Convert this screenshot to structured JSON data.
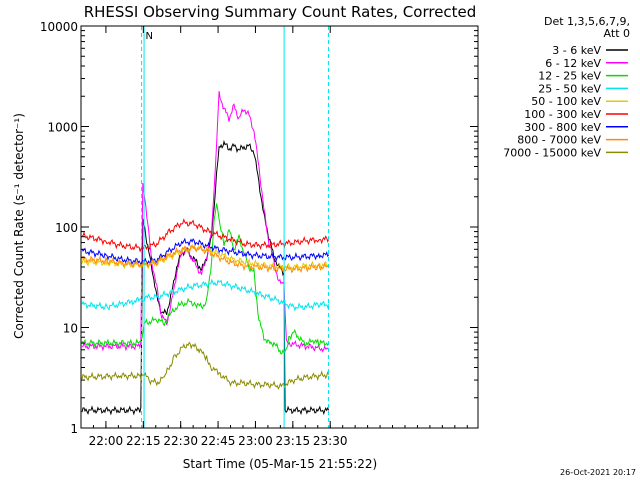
{
  "chart_data": {
    "type": "line",
    "title": "RHESSI Observing Summary Count Rates, Corrected",
    "xlabel": "Start Time (05-Mar-15 21:55:22)",
    "ylabel": "Corrected Count Rate (s⁻¹ detector⁻¹)",
    "yscale": "log",
    "ylim": [
      1,
      10000
    ],
    "xlim_min": [
      -5.4,
      153.9
    ],
    "x_ticks": [
      {
        "t": 4.6,
        "label": "22:00"
      },
      {
        "t": 19.6,
        "label": "22:15"
      },
      {
        "t": 34.6,
        "label": "22:30"
      },
      {
        "t": 49.6,
        "label": "22:45"
      },
      {
        "t": 64.6,
        "label": "23:00"
      },
      {
        "t": 79.6,
        "label": "23:15"
      },
      {
        "t": 94.6,
        "label": "23:30"
      }
    ],
    "y_ticks": [
      {
        "v": 1,
        "label": "1"
      },
      {
        "v": 10,
        "label": "10"
      },
      {
        "v": 100,
        "label": "100"
      },
      {
        "v": 1000,
        "label": "1000"
      },
      {
        "v": 10000,
        "label": "10000"
      }
    ],
    "legend_header": [
      "Det 1,3,5,6,7,9,",
      "Att 0"
    ],
    "legend_position": "right",
    "timestamp": "26-Oct-2021 20:17",
    "annotations": [
      {
        "text": "N",
        "t": 20.5,
        "y": 8500,
        "color": "#00e5ee"
      }
    ],
    "night_markers": [
      {
        "type": "dashed",
        "t": 18.9
      },
      {
        "type": "solid",
        "t": 19.9
      },
      {
        "type": "solid",
        "t": 76.1
      },
      {
        "type": "dashed",
        "t": 93.9
      }
    ],
    "night_bars": [
      {
        "t0": -5.4,
        "t1": 18.9,
        "y": 7000
      },
      {
        "t0": 76.1,
        "t1": 93.9,
        "y": 7000
      }
    ],
    "series": [
      {
        "name": "3 - 6 keV",
        "color": "#000000",
        "points": [
          [
            -5,
            1.5
          ],
          [
            18.6,
            1.5
          ],
          [
            19.4,
            120
          ],
          [
            21,
            70
          ],
          [
            23,
            40
          ],
          [
            25,
            20
          ],
          [
            27,
            14
          ],
          [
            29,
            14
          ],
          [
            31,
            22
          ],
          [
            33,
            40
          ],
          [
            35,
            55
          ],
          [
            37,
            60
          ],
          [
            39,
            50
          ],
          [
            41,
            45
          ],
          [
            43,
            37
          ],
          [
            45,
            50
          ],
          [
            47,
            80
          ],
          [
            48,
            150
          ],
          [
            49,
            350
          ],
          [
            50,
            620
          ],
          [
            52,
            680
          ],
          [
            54,
            600
          ],
          [
            56,
            640
          ],
          [
            58,
            590
          ],
          [
            60,
            620
          ],
          [
            62,
            640
          ],
          [
            64,
            560
          ],
          [
            66,
            280
          ],
          [
            68,
            130
          ],
          [
            70,
            80
          ],
          [
            72,
            50
          ],
          [
            74,
            40
          ],
          [
            76,
            35
          ],
          [
            76.5,
            1.5
          ],
          [
            94,
            1.5
          ]
        ]
      },
      {
        "name": "6 - 12 keV",
        "color": "#ff00ff",
        "points": [
          [
            -5,
            6.5
          ],
          [
            18.6,
            6.5
          ],
          [
            19.4,
            260
          ],
          [
            21,
            130
          ],
          [
            23,
            45
          ],
          [
            25,
            25
          ],
          [
            27,
            13
          ],
          [
            29,
            11
          ],
          [
            31,
            18
          ],
          [
            33,
            35
          ],
          [
            35,
            55
          ],
          [
            37,
            60
          ],
          [
            39,
            50
          ],
          [
            41,
            40
          ],
          [
            43,
            34
          ],
          [
            45,
            50
          ],
          [
            47,
            90
          ],
          [
            48,
            220
          ],
          [
            49,
            700
          ],
          [
            50,
            2100
          ],
          [
            52,
            1500
          ],
          [
            54,
            1200
          ],
          [
            56,
            1600
          ],
          [
            58,
            1200
          ],
          [
            60,
            1500
          ],
          [
            62,
            1300
          ],
          [
            64,
            900
          ],
          [
            66,
            400
          ],
          [
            68,
            150
          ],
          [
            70,
            70
          ],
          [
            72,
            45
          ],
          [
            74,
            28
          ],
          [
            76,
            28
          ],
          [
            77,
            7
          ],
          [
            94,
            6
          ]
        ]
      },
      {
        "name": "12 - 25 keV",
        "color": "#00dd00",
        "points": [
          [
            -5,
            7
          ],
          [
            18.6,
            7
          ],
          [
            20,
            11
          ],
          [
            25,
            12
          ],
          [
            28,
            11
          ],
          [
            31,
            14
          ],
          [
            33,
            16
          ],
          [
            35,
            17
          ],
          [
            38,
            18
          ],
          [
            41,
            17
          ],
          [
            43,
            16
          ],
          [
            45,
            18
          ],
          [
            47,
            45
          ],
          [
            48,
            110
          ],
          [
            49,
            180
          ],
          [
            50,
            120
          ],
          [
            52,
            65
          ],
          [
            54,
            95
          ],
          [
            56,
            60
          ],
          [
            58,
            80
          ],
          [
            60,
            55
          ],
          [
            62,
            40
          ],
          [
            64,
            35
          ],
          [
            66,
            12
          ],
          [
            68,
            8
          ],
          [
            70,
            7
          ],
          [
            72,
            7
          ],
          [
            74,
            6
          ],
          [
            76,
            5.5
          ],
          [
            77,
            6
          ],
          [
            78,
            8
          ],
          [
            80,
            9
          ],
          [
            82,
            8
          ],
          [
            84,
            7
          ],
          [
            86,
            7
          ],
          [
            88,
            7.5
          ],
          [
            90,
            7
          ],
          [
            94,
            7
          ]
        ]
      },
      {
        "name": "25 - 50 keV",
        "color": "#00e5ee",
        "points": [
          [
            -5,
            17
          ],
          [
            5,
            16
          ],
          [
            10,
            17
          ],
          [
            15,
            18
          ],
          [
            18.6,
            19
          ],
          [
            20,
            20
          ],
          [
            25,
            20
          ],
          [
            30,
            22
          ],
          [
            35,
            24
          ],
          [
            40,
            26
          ],
          [
            45,
            27
          ],
          [
            50,
            28
          ],
          [
            55,
            26
          ],
          [
            60,
            24
          ],
          [
            65,
            22
          ],
          [
            70,
            20
          ],
          [
            75,
            18
          ],
          [
            80,
            16
          ],
          [
            85,
            16
          ],
          [
            90,
            17
          ],
          [
            94,
            17
          ]
        ]
      },
      {
        "name": "50 - 100 keV",
        "color": "#e6c800",
        "points": [
          [
            -5,
            45
          ],
          [
            5,
            44
          ],
          [
            10,
            43
          ],
          [
            15,
            42
          ],
          [
            20,
            42
          ],
          [
            25,
            44
          ],
          [
            30,
            50
          ],
          [
            35,
            58
          ],
          [
            40,
            62
          ],
          [
            45,
            60
          ],
          [
            50,
            55
          ],
          [
            55,
            48
          ],
          [
            60,
            45
          ],
          [
            65,
            43
          ],
          [
            70,
            41
          ],
          [
            75,
            40
          ],
          [
            80,
            40
          ],
          [
            85,
            41
          ],
          [
            90,
            42
          ],
          [
            94,
            42
          ]
        ]
      },
      {
        "name": "100 - 300 keV",
        "color": "#ff0000",
        "points": [
          [
            -5,
            82
          ],
          [
            5,
            72
          ],
          [
            10,
            66
          ],
          [
            15,
            63
          ],
          [
            20,
            62
          ],
          [
            25,
            68
          ],
          [
            30,
            90
          ],
          [
            35,
            110
          ],
          [
            40,
            108
          ],
          [
            45,
            92
          ],
          [
            50,
            82
          ],
          [
            55,
            75
          ],
          [
            60,
            68
          ],
          [
            65,
            66
          ],
          [
            70,
            66
          ],
          [
            75,
            68
          ],
          [
            80,
            70
          ],
          [
            85,
            73
          ],
          [
            90,
            75
          ],
          [
            94,
            76
          ]
        ]
      },
      {
        "name": "300 - 800 keV",
        "color": "#0000ff",
        "points": [
          [
            -5,
            58
          ],
          [
            5,
            52
          ],
          [
            10,
            48
          ],
          [
            15,
            46
          ],
          [
            20,
            45
          ],
          [
            25,
            47
          ],
          [
            30,
            58
          ],
          [
            35,
            70
          ],
          [
            40,
            72
          ],
          [
            45,
            65
          ],
          [
            50,
            60
          ],
          [
            55,
            57
          ],
          [
            60,
            54
          ],
          [
            65,
            52
          ],
          [
            70,
            51
          ],
          [
            75,
            50
          ],
          [
            80,
            50
          ],
          [
            85,
            51
          ],
          [
            90,
            52
          ],
          [
            94,
            53
          ]
        ]
      },
      {
        "name": "800 - 7000 keV",
        "color": "#ff8c00",
        "points": [
          [
            -5,
            48
          ],
          [
            5,
            46
          ],
          [
            10,
            44
          ],
          [
            15,
            43
          ],
          [
            20,
            42
          ],
          [
            25,
            45
          ],
          [
            30,
            52
          ],
          [
            35,
            60
          ],
          [
            40,
            62
          ],
          [
            45,
            58
          ],
          [
            50,
            50
          ],
          [
            55,
            44
          ],
          [
            60,
            41
          ],
          [
            65,
            40
          ],
          [
            70,
            39
          ],
          [
            75,
            38
          ],
          [
            80,
            38
          ],
          [
            85,
            39
          ],
          [
            90,
            40
          ],
          [
            94,
            40
          ]
        ]
      },
      {
        "name": "7000 - 15000 keV",
        "color": "#8b8b00",
        "points": [
          [
            -5,
            3.2
          ],
          [
            10,
            3.3
          ],
          [
            18.6,
            3.3
          ],
          [
            20,
            3.4
          ],
          [
            22,
            3
          ],
          [
            25,
            2.8
          ],
          [
            28,
            3.2
          ],
          [
            30,
            4
          ],
          [
            32,
            5
          ],
          [
            35,
            6.2
          ],
          [
            38,
            7
          ],
          [
            40,
            6.5
          ],
          [
            42,
            6
          ],
          [
            45,
            5
          ],
          [
            47,
            4
          ],
          [
            50,
            3.5
          ],
          [
            55,
            2.8
          ],
          [
            60,
            2.8
          ],
          [
            65,
            2.7
          ],
          [
            70,
            2.7
          ],
          [
            75,
            2.6
          ],
          [
            80,
            3
          ],
          [
            85,
            3.2
          ],
          [
            90,
            3.3
          ],
          [
            94,
            3.4
          ]
        ]
      }
    ]
  }
}
